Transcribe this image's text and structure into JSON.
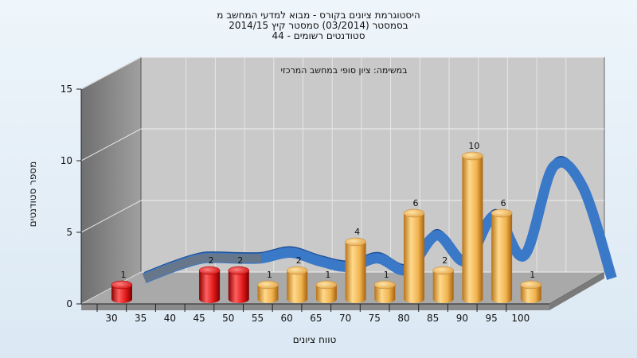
{
  "chart_data": {
    "type": "bar",
    "title_lines": [
      "היסטוגרמת ציונים בקורס - מבוא למדעי המחשב מ",
      "בסמסטר  (03/2014)  סמסטר קיץ 2014/15",
      "סטודנטים רשומים - 44"
    ],
    "subtitle": "במשימה: ציון סופי במחשב המרכזי",
    "xlabel": "טווח ציונים",
    "ylabel": "מספר סטודנטים",
    "x_ticks": [
      "30",
      "35",
      "40",
      "45",
      "50",
      "55",
      "60",
      "65",
      "70",
      "75",
      "80",
      "85",
      "90",
      "95",
      "100"
    ],
    "y_ticks": [
      "0",
      "5",
      "10",
      "15"
    ],
    "ylim": [
      0,
      15
    ],
    "grid": true,
    "bars": [
      {
        "x": 30,
        "value": 1,
        "label": "1",
        "color": "red"
      },
      {
        "x": 45,
        "value": 2,
        "label": "2",
        "color": "red"
      },
      {
        "x": 50,
        "value": 2,
        "label": "2",
        "color": "red"
      },
      {
        "x": 55,
        "value": 1,
        "label": "1",
        "color": "orange"
      },
      {
        "x": 60,
        "value": 2,
        "label": "2",
        "color": "orange"
      },
      {
        "x": 65,
        "value": 1,
        "label": "1",
        "color": "orange"
      },
      {
        "x": 70,
        "value": 4,
        "label": "4",
        "color": "orange"
      },
      {
        "x": 75,
        "value": 1,
        "label": "1",
        "color": "orange"
      },
      {
        "x": 80,
        "value": 6,
        "label": "6",
        "color": "orange"
      },
      {
        "x": 85,
        "value": 2,
        "label": "2",
        "color": "orange"
      },
      {
        "x": 90,
        "value": 10,
        "label": "10",
        "color": "orange"
      },
      {
        "x": 95,
        "value": 6,
        "label": "6",
        "color": "orange"
      },
      {
        "x": 100,
        "value": 1,
        "label": "1",
        "color": "orange"
      }
    ],
    "curve": [
      {
        "x": 30,
        "y": 0.2
      },
      {
        "x": 35,
        "y": 1.0
      },
      {
        "x": 40,
        "y": 1.6
      },
      {
        "x": 45,
        "y": 1.6
      },
      {
        "x": 50,
        "y": 1.6
      },
      {
        "x": 55,
        "y": 2.0
      },
      {
        "x": 60,
        "y": 1.4
      },
      {
        "x": 65,
        "y": 1.0
      },
      {
        "x": 70,
        "y": 1.6
      },
      {
        "x": 75,
        "y": 0.8
      },
      {
        "x": 80,
        "y": 3.2
      },
      {
        "x": 85,
        "y": 1.4
      },
      {
        "x": 90,
        "y": 4.6
      },
      {
        "x": 95,
        "y": 1.8
      },
      {
        "x": 100,
        "y": 8.0
      },
      {
        "x": 105,
        "y": 6.6
      },
      {
        "x": 110,
        "y": 0.2
      }
    ],
    "colors": {
      "red_bar": "#e01818",
      "orange_bar": "#f0b450",
      "curve": "#3a78c8",
      "back_wall": "#c8c8c8",
      "side_wall": "#8c8c8c",
      "floor": "#a8a8a8"
    }
  }
}
